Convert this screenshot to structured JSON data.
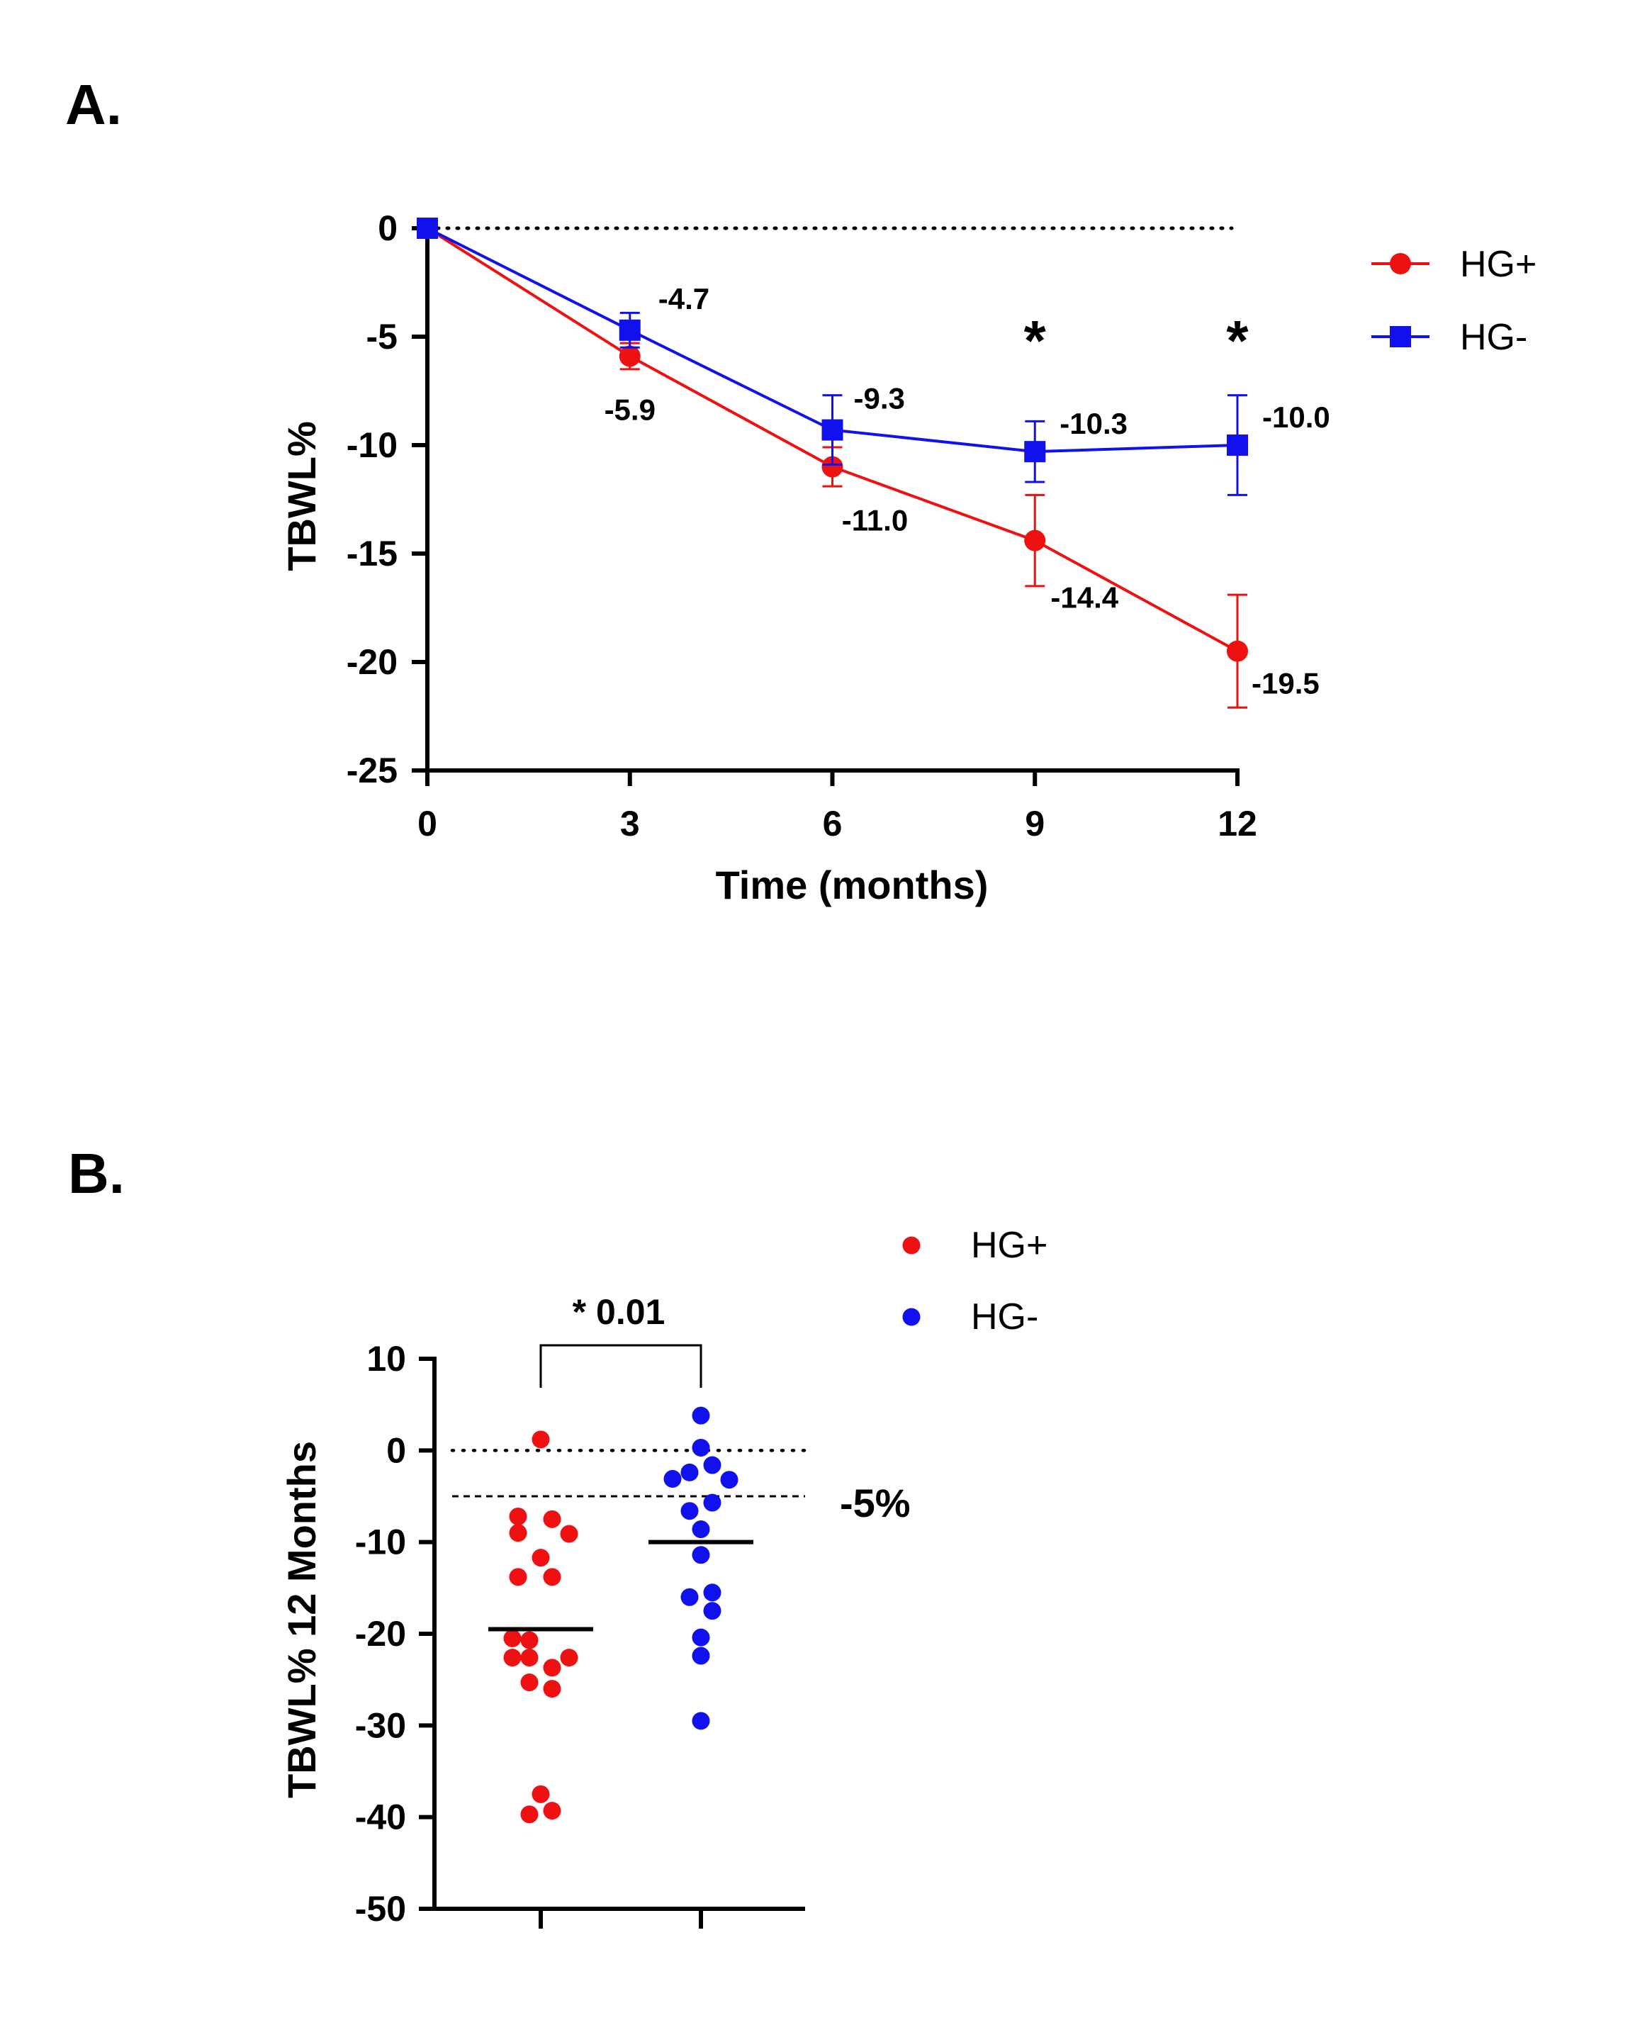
{
  "panels": {
    "a_label": "A.",
    "b_label": "B."
  },
  "chart_data": [
    {
      "type": "line",
      "panel": "A.",
      "xlabel": "Time (months)",
      "ylabel": "TBWL%",
      "xlim": [
        0,
        12
      ],
      "ylim": [
        -25,
        0
      ],
      "x_ticks": [
        "0",
        "3",
        "6",
        "9",
        "12"
      ],
      "y_ticks": [
        "0",
        "-5",
        "-10",
        "-15",
        "-20",
        "-25"
      ],
      "reference_line": {
        "y": 0,
        "style": "dotted"
      },
      "legend_position": "top-right",
      "series": [
        {
          "name": "HG+",
          "color": "#ee1111",
          "marker": "circle",
          "x": [
            0,
            3,
            6,
            9,
            12
          ],
          "values": [
            0,
            -5.9,
            -11.0,
            -14.4,
            -19.5
          ],
          "errors": [
            0,
            0.6,
            0.9,
            2.1,
            2.6
          ],
          "labels": [
            "",
            "-5.9",
            "-11.0",
            "-14.4",
            "-19.5"
          ]
        },
        {
          "name": "HG-",
          "color": "#1111ee",
          "marker": "square",
          "x": [
            0,
            3,
            6,
            9,
            12
          ],
          "values": [
            0,
            -4.7,
            -9.3,
            -10.3,
            -10.0
          ],
          "errors": [
            0,
            0.8,
            1.6,
            1.4,
            2.3
          ],
          "labels": [
            "",
            "-4.7",
            "-9.3",
            "-10.3",
            "-10.0"
          ]
        }
      ],
      "annotations": [
        {
          "x": 9,
          "text": "*"
        },
        {
          "x": 12,
          "text": "*"
        }
      ]
    },
    {
      "type": "scatter",
      "panel": "B.",
      "ylabel": "TBWL% 12 Months",
      "ylim": [
        -50,
        10
      ],
      "y_ticks": [
        "10",
        "0",
        "-10",
        "-20",
        "-30",
        "-40",
        "-50"
      ],
      "legend_position": "top-right",
      "reference_lines": [
        {
          "y": 0,
          "style": "dotted",
          "label": ""
        },
        {
          "y": -5,
          "style": "dashed",
          "label": "-5%"
        }
      ],
      "significance": {
        "text": "* 0.01",
        "between": [
          "HG+",
          "HG-"
        ]
      },
      "groups": [
        {
          "name": "HG+",
          "color": "#ee1111",
          "mean": -19.5,
          "points": [
            {
              "jitter": 0,
              "y": 1.2
            },
            {
              "jitter": -0.8,
              "y": -7.2
            },
            {
              "jitter": 0.4,
              "y": -7.5
            },
            {
              "jitter": -0.8,
              "y": -9.0
            },
            {
              "jitter": 1,
              "y": -9.1
            },
            {
              "jitter": 0,
              "y": -11.7
            },
            {
              "jitter": -0.8,
              "y": -13.8
            },
            {
              "jitter": 0.4,
              "y": -13.8
            },
            {
              "jitter": -1,
              "y": -20.5
            },
            {
              "jitter": -0.4,
              "y": -20.7
            },
            {
              "jitter": -1,
              "y": -22.6
            },
            {
              "jitter": -0.4,
              "y": -22.6
            },
            {
              "jitter": 1,
              "y": -22.6
            },
            {
              "jitter": 0.4,
              "y": -23.7
            },
            {
              "jitter": -0.4,
              "y": -25.3
            },
            {
              "jitter": 0.4,
              "y": -26.0
            },
            {
              "jitter": 0,
              "y": -37.5
            },
            {
              "jitter": -0.4,
              "y": -39.7
            },
            {
              "jitter": 0.4,
              "y": -39.3
            }
          ]
        },
        {
          "name": "HG-",
          "color": "#1111ee",
          "mean": -10.0,
          "points": [
            {
              "jitter": 0,
              "y": 3.8
            },
            {
              "jitter": 0,
              "y": 0.3
            },
            {
              "jitter": 0.4,
              "y": -1.6
            },
            {
              "jitter": -0.4,
              "y": -2.4
            },
            {
              "jitter": -1,
              "y": -3.1
            },
            {
              "jitter": 1,
              "y": -3.2
            },
            {
              "jitter": 0.4,
              "y": -5.7
            },
            {
              "jitter": -0.4,
              "y": -6.6
            },
            {
              "jitter": 0,
              "y": -8.6
            },
            {
              "jitter": 0,
              "y": -11.4
            },
            {
              "jitter": 0.4,
              "y": -15.5
            },
            {
              "jitter": -0.4,
              "y": -16.0
            },
            {
              "jitter": 0.4,
              "y": -17.5
            },
            {
              "jitter": 0,
              "y": -20.4
            },
            {
              "jitter": 0,
              "y": -22.4
            },
            {
              "jitter": 0,
              "y": -29.5
            }
          ]
        }
      ]
    }
  ]
}
